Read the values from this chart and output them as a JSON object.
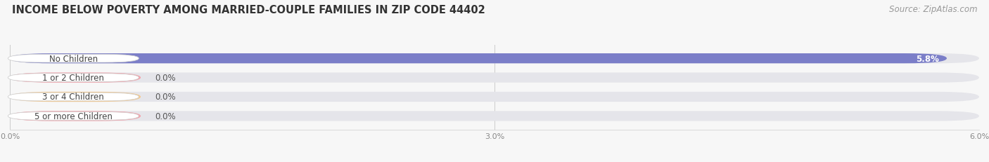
{
  "title": "INCOME BELOW POVERTY AMONG MARRIED-COUPLE FAMILIES IN ZIP CODE 44402",
  "source": "Source: ZipAtlas.com",
  "categories": [
    "No Children",
    "1 or 2 Children",
    "3 or 4 Children",
    "5 or more Children"
  ],
  "values": [
    5.8,
    0.0,
    0.0,
    0.0
  ],
  "bar_colors": [
    "#7b7ec8",
    "#f4a0a8",
    "#f5c88a",
    "#f4a0a8"
  ],
  "label_colors": [
    "#ffffff",
    "#666666",
    "#666666",
    "#666666"
  ],
  "background_color": "#f7f7f7",
  "bar_bg_color": "#e5e5ea",
  "xlim_data": 6.0,
  "xticks": [
    0.0,
    3.0,
    6.0
  ],
  "xtick_labels": [
    "0.0%",
    "3.0%",
    "6.0%"
  ],
  "title_fontsize": 10.5,
  "source_fontsize": 8.5,
  "label_fontsize": 8.5,
  "value_fontsize": 8.5,
  "bar_height": 0.52
}
